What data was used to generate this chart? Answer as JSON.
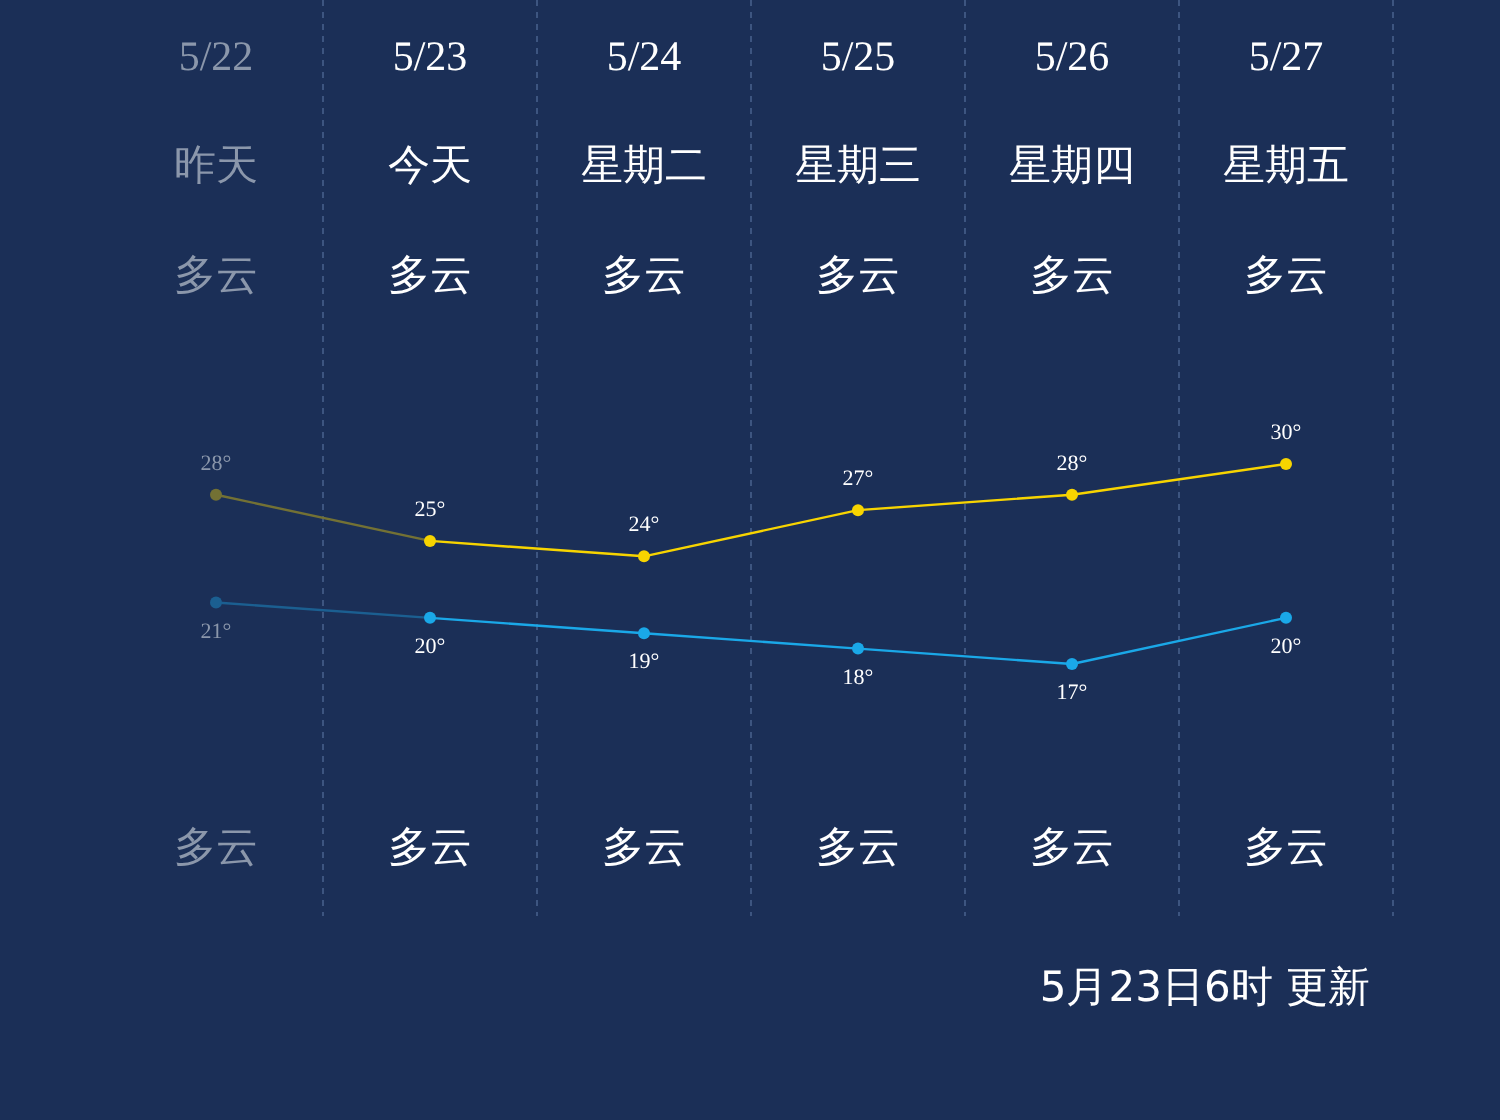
{
  "chart_data": {
    "type": "line",
    "categories": [
      "5/22",
      "5/23",
      "5/24",
      "5/25",
      "5/26",
      "5/27"
    ],
    "series": [
      {
        "color": "#f7d400",
        "values": [
          28,
          25,
          24,
          27,
          28,
          30
        ],
        "value_labels": [
          "28°",
          "25°",
          "24°",
          "27°",
          "28°",
          "30°"
        ]
      },
      {
        "color": "#1aa8e8",
        "values": [
          21,
          20,
          19,
          18,
          17,
          20
        ],
        "value_labels": [
          "21°",
          "20°",
          "19°",
          "18°",
          "17°",
          "20°"
        ]
      }
    ],
    "marker": "circle",
    "grid": "x",
    "annotations": [
      "昨天",
      "今天",
      "星期二",
      "星期三",
      "星期四",
      "星期五",
      "多云",
      "多云",
      "多云",
      "多云",
      "多云",
      "多云",
      "多云",
      "多云",
      "多云",
      "多云",
      "多云",
      "多云",
      "5月23日6时 更新"
    ]
  }
}
